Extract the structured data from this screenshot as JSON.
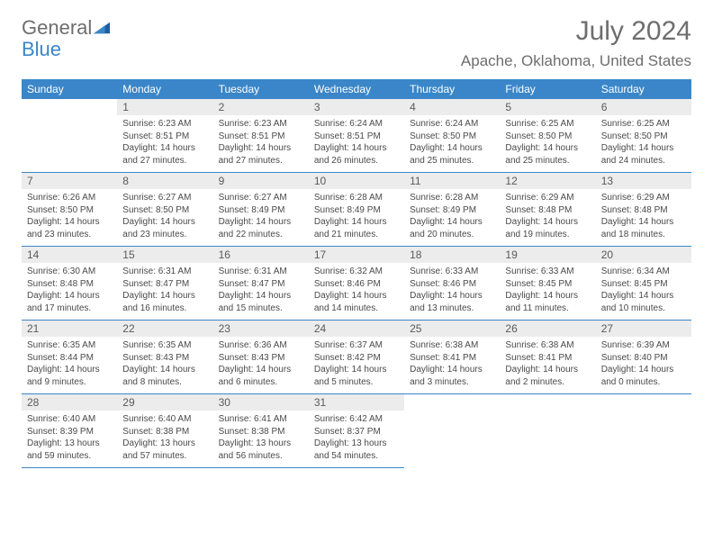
{
  "brand": {
    "part1": "General",
    "part2": "Blue"
  },
  "title": "July 2024",
  "location": "Apache, Oklahoma, United States",
  "colors": {
    "accent": "#3a86c8",
    "header_text": "#ffffff",
    "daynum_bg": "#ececec",
    "text": "#4a4a4a"
  },
  "weekdays": [
    "Sunday",
    "Monday",
    "Tuesday",
    "Wednesday",
    "Thursday",
    "Friday",
    "Saturday"
  ],
  "weeks": [
    [
      null,
      {
        "n": "1",
        "sr": "Sunrise: 6:23 AM",
        "ss": "Sunset: 8:51 PM",
        "dl": "Daylight: 14 hours and 27 minutes."
      },
      {
        "n": "2",
        "sr": "Sunrise: 6:23 AM",
        "ss": "Sunset: 8:51 PM",
        "dl": "Daylight: 14 hours and 27 minutes."
      },
      {
        "n": "3",
        "sr": "Sunrise: 6:24 AM",
        "ss": "Sunset: 8:51 PM",
        "dl": "Daylight: 14 hours and 26 minutes."
      },
      {
        "n": "4",
        "sr": "Sunrise: 6:24 AM",
        "ss": "Sunset: 8:50 PM",
        "dl": "Daylight: 14 hours and 25 minutes."
      },
      {
        "n": "5",
        "sr": "Sunrise: 6:25 AM",
        "ss": "Sunset: 8:50 PM",
        "dl": "Daylight: 14 hours and 25 minutes."
      },
      {
        "n": "6",
        "sr": "Sunrise: 6:25 AM",
        "ss": "Sunset: 8:50 PM",
        "dl": "Daylight: 14 hours and 24 minutes."
      }
    ],
    [
      {
        "n": "7",
        "sr": "Sunrise: 6:26 AM",
        "ss": "Sunset: 8:50 PM",
        "dl": "Daylight: 14 hours and 23 minutes."
      },
      {
        "n": "8",
        "sr": "Sunrise: 6:27 AM",
        "ss": "Sunset: 8:50 PM",
        "dl": "Daylight: 14 hours and 23 minutes."
      },
      {
        "n": "9",
        "sr": "Sunrise: 6:27 AM",
        "ss": "Sunset: 8:49 PM",
        "dl": "Daylight: 14 hours and 22 minutes."
      },
      {
        "n": "10",
        "sr": "Sunrise: 6:28 AM",
        "ss": "Sunset: 8:49 PM",
        "dl": "Daylight: 14 hours and 21 minutes."
      },
      {
        "n": "11",
        "sr": "Sunrise: 6:28 AM",
        "ss": "Sunset: 8:49 PM",
        "dl": "Daylight: 14 hours and 20 minutes."
      },
      {
        "n": "12",
        "sr": "Sunrise: 6:29 AM",
        "ss": "Sunset: 8:48 PM",
        "dl": "Daylight: 14 hours and 19 minutes."
      },
      {
        "n": "13",
        "sr": "Sunrise: 6:29 AM",
        "ss": "Sunset: 8:48 PM",
        "dl": "Daylight: 14 hours and 18 minutes."
      }
    ],
    [
      {
        "n": "14",
        "sr": "Sunrise: 6:30 AM",
        "ss": "Sunset: 8:48 PM",
        "dl": "Daylight: 14 hours and 17 minutes."
      },
      {
        "n": "15",
        "sr": "Sunrise: 6:31 AM",
        "ss": "Sunset: 8:47 PM",
        "dl": "Daylight: 14 hours and 16 minutes."
      },
      {
        "n": "16",
        "sr": "Sunrise: 6:31 AM",
        "ss": "Sunset: 8:47 PM",
        "dl": "Daylight: 14 hours and 15 minutes."
      },
      {
        "n": "17",
        "sr": "Sunrise: 6:32 AM",
        "ss": "Sunset: 8:46 PM",
        "dl": "Daylight: 14 hours and 14 minutes."
      },
      {
        "n": "18",
        "sr": "Sunrise: 6:33 AM",
        "ss": "Sunset: 8:46 PM",
        "dl": "Daylight: 14 hours and 13 minutes."
      },
      {
        "n": "19",
        "sr": "Sunrise: 6:33 AM",
        "ss": "Sunset: 8:45 PM",
        "dl": "Daylight: 14 hours and 11 minutes."
      },
      {
        "n": "20",
        "sr": "Sunrise: 6:34 AM",
        "ss": "Sunset: 8:45 PM",
        "dl": "Daylight: 14 hours and 10 minutes."
      }
    ],
    [
      {
        "n": "21",
        "sr": "Sunrise: 6:35 AM",
        "ss": "Sunset: 8:44 PM",
        "dl": "Daylight: 14 hours and 9 minutes."
      },
      {
        "n": "22",
        "sr": "Sunrise: 6:35 AM",
        "ss": "Sunset: 8:43 PM",
        "dl": "Daylight: 14 hours and 8 minutes."
      },
      {
        "n": "23",
        "sr": "Sunrise: 6:36 AM",
        "ss": "Sunset: 8:43 PM",
        "dl": "Daylight: 14 hours and 6 minutes."
      },
      {
        "n": "24",
        "sr": "Sunrise: 6:37 AM",
        "ss": "Sunset: 8:42 PM",
        "dl": "Daylight: 14 hours and 5 minutes."
      },
      {
        "n": "25",
        "sr": "Sunrise: 6:38 AM",
        "ss": "Sunset: 8:41 PM",
        "dl": "Daylight: 14 hours and 3 minutes."
      },
      {
        "n": "26",
        "sr": "Sunrise: 6:38 AM",
        "ss": "Sunset: 8:41 PM",
        "dl": "Daylight: 14 hours and 2 minutes."
      },
      {
        "n": "27",
        "sr": "Sunrise: 6:39 AM",
        "ss": "Sunset: 8:40 PM",
        "dl": "Daylight: 14 hours and 0 minutes."
      }
    ],
    [
      {
        "n": "28",
        "sr": "Sunrise: 6:40 AM",
        "ss": "Sunset: 8:39 PM",
        "dl": "Daylight: 13 hours and 59 minutes."
      },
      {
        "n": "29",
        "sr": "Sunrise: 6:40 AM",
        "ss": "Sunset: 8:38 PM",
        "dl": "Daylight: 13 hours and 57 minutes."
      },
      {
        "n": "30",
        "sr": "Sunrise: 6:41 AM",
        "ss": "Sunset: 8:38 PM",
        "dl": "Daylight: 13 hours and 56 minutes."
      },
      {
        "n": "31",
        "sr": "Sunrise: 6:42 AM",
        "ss": "Sunset: 8:37 PM",
        "dl": "Daylight: 13 hours and 54 minutes."
      },
      null,
      null,
      null
    ]
  ]
}
